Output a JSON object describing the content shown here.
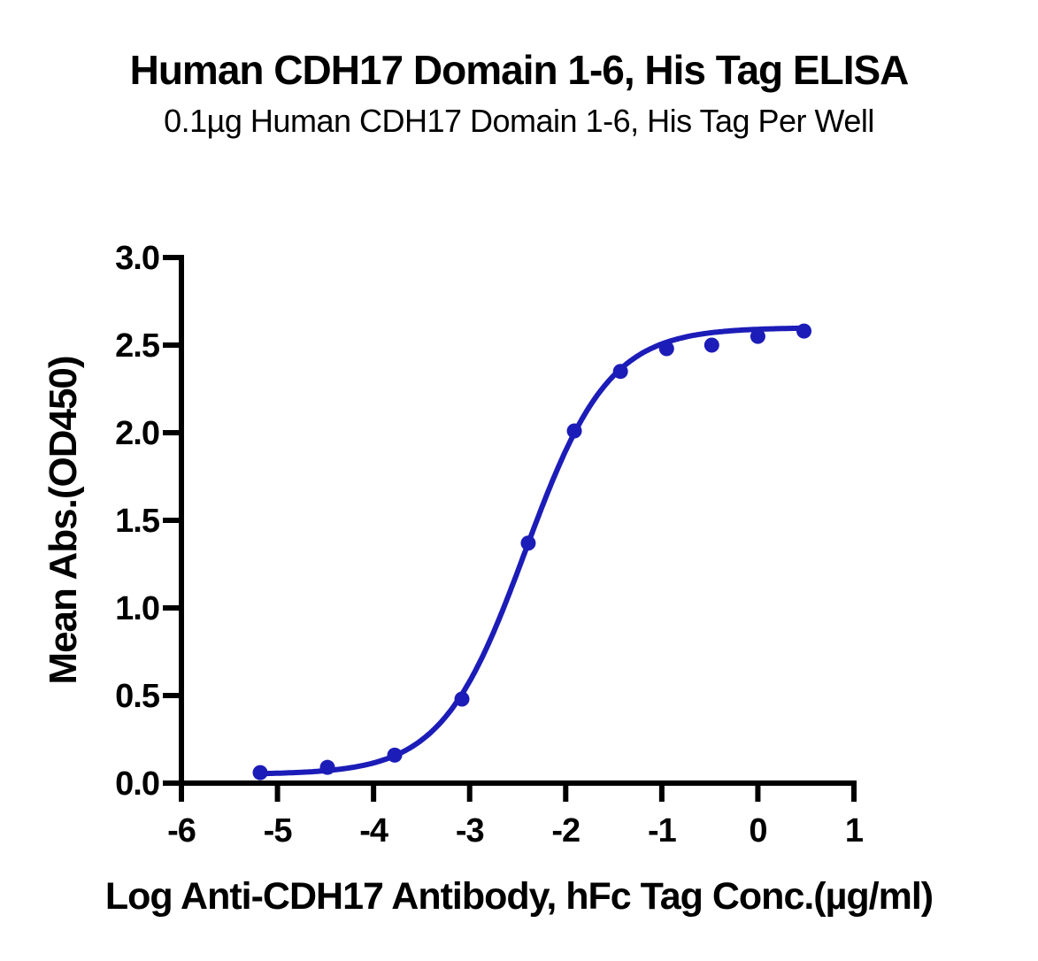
{
  "chart_data": {
    "type": "line",
    "title": "Human CDH17 Domain 1-6, His Tag ELISA",
    "subtitle": "0.1µg Human CDH17 Domain 1-6, His Tag Per Well",
    "xlabel": "Log Anti-CDH17 Antibody, hFc Tag Conc.(µg/ml)",
    "ylabel": "Mean Abs.(OD450)",
    "xlim": [
      -6,
      1
    ],
    "ylim": [
      0,
      3
    ],
    "grid": false,
    "legend": false,
    "x_ticks": [
      {
        "value": -6,
        "label": "-6"
      },
      {
        "value": -5,
        "label": "-5"
      },
      {
        "value": -4,
        "label": "-4"
      },
      {
        "value": -3,
        "label": "-3"
      },
      {
        "value": -2,
        "label": "-2"
      },
      {
        "value": -1,
        "label": "-1"
      },
      {
        "value": 0,
        "label": "0"
      },
      {
        "value": 1,
        "label": "1"
      }
    ],
    "y_ticks": [
      {
        "value": 0.0,
        "label": "0.0"
      },
      {
        "value": 0.5,
        "label": "0.5"
      },
      {
        "value": 1.0,
        "label": "1.0"
      },
      {
        "value": 1.5,
        "label": "1.5"
      },
      {
        "value": 2.0,
        "label": "2.0"
      },
      {
        "value": 2.5,
        "label": "2.5"
      },
      {
        "value": 3.0,
        "label": "3.0"
      }
    ],
    "series": [
      {
        "name": "Anti-CDH17 Antibody, hFc Tag",
        "color": "#1c1cb8",
        "marker_radius": 8.5,
        "line_width": 6,
        "x": [
          -5.18,
          -4.48,
          -3.78,
          -3.08,
          -2.39,
          -1.91,
          -1.43,
          -0.95,
          -0.48,
          0.0,
          0.48
        ],
        "y": [
          0.06,
          0.09,
          0.16,
          0.48,
          1.37,
          2.01,
          2.35,
          2.48,
          2.5,
          2.55,
          2.58
        ]
      }
    ],
    "fit_curve": {
      "model": "4PL",
      "bottom": 0.05,
      "top": 2.6,
      "log_ec50": -2.42,
      "hill": 1.0
    },
    "axis_color": "#000000"
  }
}
